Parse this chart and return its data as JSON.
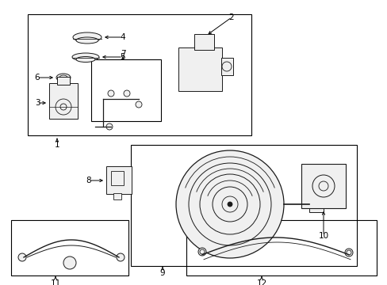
{
  "bg_color": "#ffffff",
  "line_color": "#1a1a1a",
  "box_color": "#000000",
  "text_color": "#000000",
  "figsize": [
    4.89,
    3.6
  ],
  "dpi": 100
}
